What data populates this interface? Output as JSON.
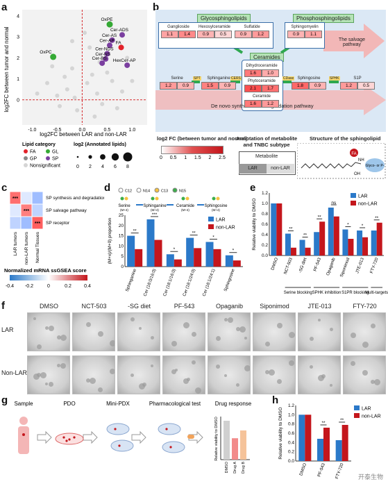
{
  "panels": {
    "a": "a",
    "b": "b",
    "c": "c",
    "d": "d",
    "e": "e",
    "f": "f",
    "g": "g",
    "h": "h"
  },
  "a": {
    "xlabel": "log2FC between LAR and non-LAR",
    "ylabel": "log2FC between tumor and normal",
    "xticks": [
      "-1.0",
      "-0.5",
      "0.0",
      "0.5",
      "1.0"
    ],
    "yticks": [
      "0",
      "1",
      "2",
      "3",
      "4"
    ],
    "points": [
      {
        "label": "OxPE",
        "x": 0.55,
        "y": 3.6,
        "cat": "GL"
      },
      {
        "label": "Cer-ADS",
        "x": 0.8,
        "y": 3.1,
        "cat": "SP"
      },
      {
        "label": "Cer-AS",
        "x": 0.6,
        "y": 2.85,
        "cat": "SP"
      },
      {
        "label": "Cer-AP",
        "x": 0.55,
        "y": 2.6,
        "cat": "SP"
      },
      {
        "label": "FA",
        "x": 0.78,
        "y": 2.5,
        "cat": "FA"
      },
      {
        "label": "Cer-NDS",
        "x": 0.5,
        "y": 2.2,
        "cat": "SP"
      },
      {
        "label": "Cer-NS",
        "x": 0.47,
        "y": 1.95,
        "cat": "SP"
      },
      {
        "label": "Cer-BS",
        "x": 0.4,
        "y": 1.75,
        "cat": "SP"
      },
      {
        "label": "HexCer-AP",
        "x": 0.9,
        "y": 1.65,
        "cat": "SP"
      },
      {
        "label": "OxPC",
        "x": -0.58,
        "y": 2.05,
        "cat": "GL"
      }
    ],
    "legend_title": "Lipid category",
    "legend": [
      "FA",
      "GL",
      "GP",
      "SP",
      "Nonsignificant"
    ],
    "size_title": "log2 (Annotated lipids)",
    "size_ticks": [
      "0",
      "2",
      "4",
      "6",
      "8"
    ]
  },
  "b": {
    "glyco": "Glycosphingolipids",
    "phospho": "Phosphosphingolipids",
    "salvage": "The salvage pathway",
    "ceramides": "Ceramides",
    "denovo": "De novo synthesis and degradation pathway",
    "boxes": [
      {
        "name": "Ganglioside",
        "v": [
          "1.1",
          "1.4"
        ]
      },
      {
        "name": "Hexosylceramide",
        "v": [
          "0.9",
          "0.5"
        ]
      },
      {
        "name": "Sulfatide",
        "v": [
          "0.9",
          "1.2"
        ]
      },
      {
        "name": "Sphingomyelin",
        "v": [
          "0.9",
          "1.1"
        ]
      },
      {
        "name": "Serine",
        "v": [
          "1.2",
          "0.9"
        ]
      },
      {
        "name": "Sphinganine",
        "v": [
          "1.5",
          "0.9"
        ]
      },
      {
        "name": "Dihydroceramide",
        "v": [
          "1.6",
          "1.0"
        ]
      },
      {
        "name": "Phytoceramide",
        "v": [
          "2.1",
          "1.7"
        ]
      },
      {
        "name": "Ceramide",
        "v": [
          "1.6",
          "1.2"
        ]
      },
      {
        "name": "Sphingosine",
        "v": [
          "1.8",
          "0.9"
        ]
      },
      {
        "name": "S1P",
        "v": [
          "1.2",
          "0.5"
        ]
      }
    ],
    "enzymes": [
      "SPT",
      "CERS",
      "CDase",
      "SPHK"
    ],
    "legend_title": "log2 FC (between tumor and normal)",
    "legend_ticks": [
      "0",
      "0.5",
      "1",
      "1.5",
      "2",
      "2.5"
    ],
    "annot_title": "Annotation of metabolite and TNBC subtype",
    "annot_metabolite": "Metabolite",
    "annot_lar": "LAR",
    "annot_nonlar": "non-LAR",
    "struct_title": "Structure of the sphingolipid",
    "struct_fa": "FA",
    "struct_head": "Glyco- or P-",
    "struct_nh": "NH",
    "struct_oh": "OH"
  },
  "c": {
    "rows": [
      "SP synthesis and degradation pathway",
      "SP salvage pathway",
      "SP receptor"
    ],
    "cols": [
      "LAR tumors",
      "non-LAR tumors",
      "Normal Tissues"
    ],
    "stars": "***",
    "legend_title": "Normalized mRNA ssGSEA score",
    "legend_ticks": [
      "-0.4",
      "-0.2",
      "0",
      "0.2",
      "0.4"
    ]
  },
  "d": {
    "ylabel": "(M+x)/(M+0) proportion",
    "pathway": [
      "Serine",
      "Sphinganine",
      "Ceramide",
      "Sphingosine"
    ],
    "pathway_sub": [
      "(M+4)",
      "(M+4)",
      "(M+4)",
      "(M+4)"
    ],
    "atoms": [
      "C12",
      "N14",
      "C13",
      "N15"
    ],
    "yticks": [
      "0",
      "5",
      "10",
      "15",
      "20",
      "25"
    ],
    "legend": [
      "LAR",
      "non-LAR"
    ],
    "categories": [
      "Sphinganine",
      "Cer (18:0/16:0)",
      "Cer (18:1/16:0)",
      "Cer (18:1/24:0)",
      "Cer (18:1/24:1)",
      "Sphingosine"
    ],
    "lar": [
      15,
      23,
      6,
      14,
      12,
      5.5
    ],
    "nonlar": [
      8.5,
      13,
      3.5,
      9,
      8.5,
      3
    ],
    "sig": [
      "**",
      "***",
      "*",
      "**",
      "*",
      "*"
    ]
  },
  "e": {
    "ylabel": "Relative viability to DMSO",
    "legend": [
      "LAR",
      "non-LAR"
    ],
    "yticks": [
      "0.0",
      "0.2",
      "0.4",
      "0.6",
      "0.8",
      "1.0",
      "1.2"
    ],
    "categories": [
      "DMSO",
      "NCT-503",
      "-SG diet",
      "PF-543",
      "Opaganib",
      "Siponimod",
      "JTE-013",
      "FTY-720"
    ],
    "lar": [
      1.0,
      0.42,
      0.3,
      0.45,
      0.92,
      0.5,
      0.48,
      0.48
    ],
    "nonlar": [
      1.0,
      0.15,
      0.15,
      0.65,
      0.75,
      0.32,
      0.35,
      0.63
    ],
    "sig": [
      "",
      "**",
      "**",
      "**",
      "ns",
      "*",
      "*",
      "**"
    ],
    "groups": [
      "Serine blocking",
      "SPHK inhibition",
      "S1PR blocking",
      "Multi-targets"
    ]
  },
  "f": {
    "cols": [
      "DMSO",
      "NCT-503",
      "-SG diet",
      "PF-543",
      "Opaganib",
      "Siponimod",
      "JTE-013",
      "FTY-720"
    ],
    "rows": [
      "LAR",
      "Non-LAR"
    ]
  },
  "g": {
    "steps": [
      "Sample",
      "PDO",
      "Mini-PDX",
      "Pharmacological test",
      "Drug response"
    ],
    "ylabel": "Relative viability to DMSO",
    "bars": [
      "DMSO",
      "Drug A",
      "Drug B"
    ],
    "values": [
      1.0,
      0.55,
      0.75
    ]
  },
  "h": {
    "ylabel": "Relative viability to DMSO",
    "legend": [
      "LAR",
      "non-LAR"
    ],
    "yticks": [
      "0.0",
      "0.2",
      "0.4",
      "0.6",
      "0.8",
      "1.0",
      "1.2"
    ],
    "categories": [
      "DMSO",
      "PF-543",
      "FTY-720"
    ],
    "lar": [
      1.0,
      0.48,
      0.45
    ],
    "nonlar": [
      1.0,
      0.72,
      0.78
    ],
    "sig": [
      "",
      "**",
      "**"
    ],
    "watermark": "开泰生物"
  },
  "colors": {
    "lar": "#2b79c9",
    "nonlar": "#c4161c",
    "fa": "#e2222a",
    "gl": "#35a935",
    "gp": "#888888",
    "sp": "#7b3fa0",
    "ns": "#d5d5d5"
  },
  "chart_data": [
    {
      "type": "scatter",
      "panel": "a",
      "xlabel": "log2FC between LAR and non-LAR",
      "ylabel": "log2FC between tumor and normal",
      "xlim": [
        -1.2,
        1.3
      ],
      "ylim": [
        -1.2,
        4.3
      ]
    },
    {
      "type": "bar",
      "panel": "d",
      "categories": [
        "Sphinganine",
        "Cer (18:0/16:0)",
        "Cer (18:1/16:0)",
        "Cer (18:1/24:0)",
        "Cer (18:1/24:1)",
        "Sphingosine"
      ],
      "series": [
        {
          "name": "LAR",
          "values": [
            15,
            23,
            6,
            14,
            12,
            5.5
          ]
        },
        {
          "name": "non-LAR",
          "values": [
            8.5,
            13,
            3.5,
            9,
            8.5,
            3
          ]
        }
      ],
      "ylabel": "(M+x)/(M+0) proportion",
      "ylim": [
        0,
        25
      ]
    },
    {
      "type": "bar",
      "panel": "e",
      "categories": [
        "DMSO",
        "NCT-503",
        "-SG diet",
        "PF-543",
        "Opaganib",
        "Siponimod",
        "JTE-013",
        "FTY-720"
      ],
      "series": [
        {
          "name": "LAR",
          "values": [
            1.0,
            0.42,
            0.3,
            0.45,
            0.92,
            0.5,
            0.48,
            0.48
          ]
        },
        {
          "name": "non-LAR",
          "values": [
            1.0,
            0.15,
            0.15,
            0.65,
            0.75,
            0.32,
            0.35,
            0.63
          ]
        }
      ],
      "ylabel": "Relative viability to DMSO",
      "ylim": [
        0,
        1.2
      ]
    },
    {
      "type": "bar",
      "panel": "h",
      "categories": [
        "DMSO",
        "PF-543",
        "FTY-720"
      ],
      "series": [
        {
          "name": "LAR",
          "values": [
            1.0,
            0.48,
            0.45
          ]
        },
        {
          "name": "non-LAR",
          "values": [
            1.0,
            0.72,
            0.78
          ]
        }
      ],
      "ylabel": "Relative viability to DMSO",
      "ylim": [
        0,
        1.2
      ]
    }
  ]
}
